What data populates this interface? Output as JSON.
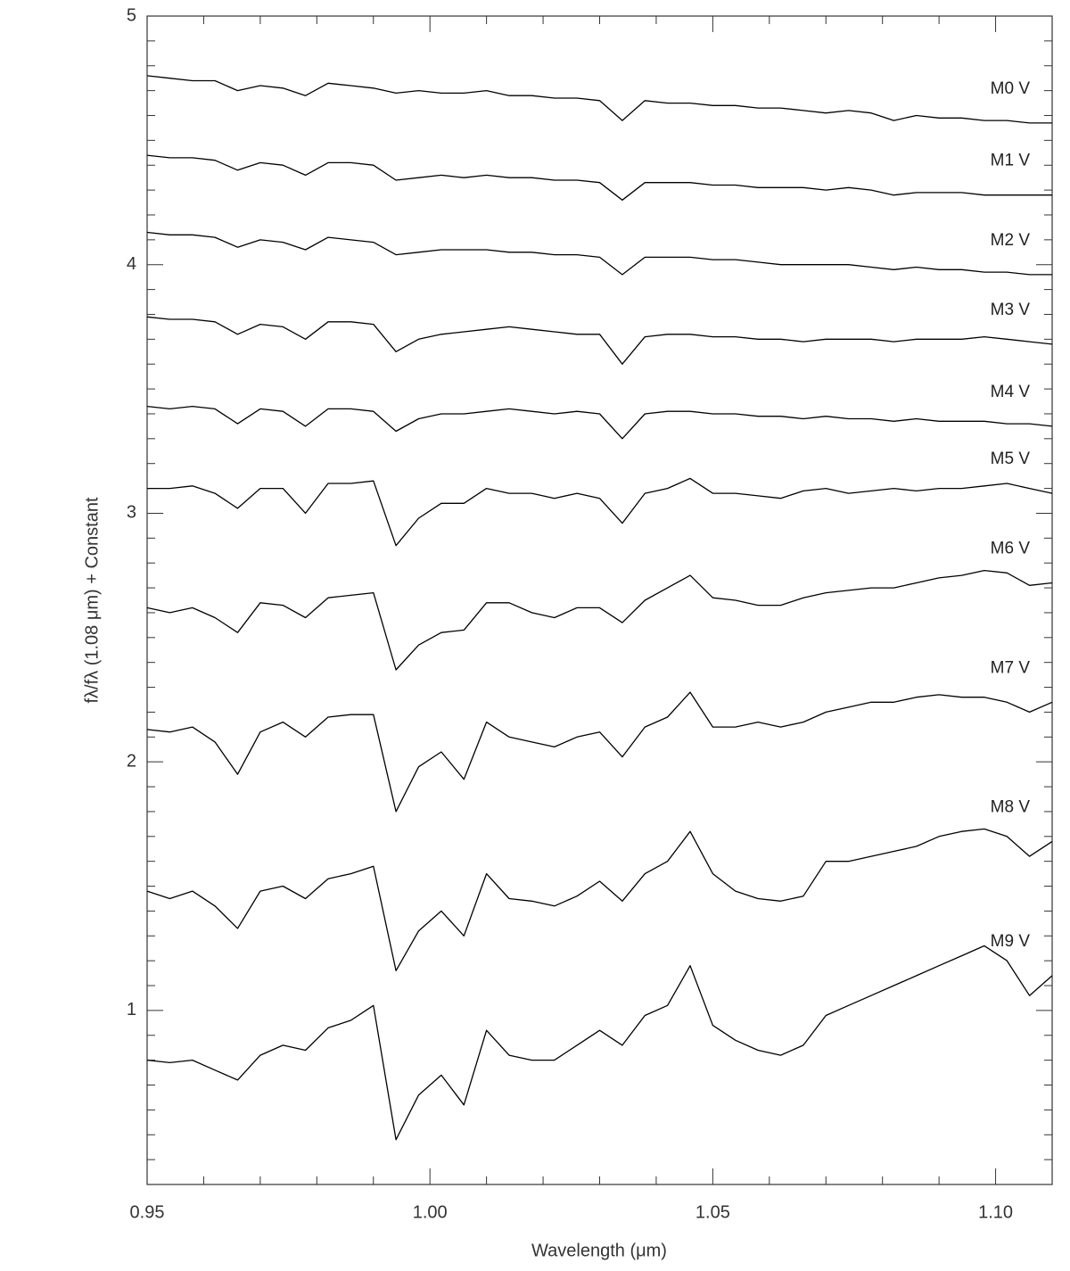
{
  "chart_data": {
    "type": "line",
    "xlabel": "Wavelength (μm)",
    "ylabel": "fλ/fλ (1.08 μm) + Constant",
    "xlim": [
      0.95,
      1.11
    ],
    "ylim": [
      0.3,
      5
    ],
    "xticks": [
      0.95,
      {
        "value": 1,
        "label": "1.00"
      },
      1.05,
      {
        "value": 1.1,
        "label": "1.10"
      }
    ],
    "yticks": [
      1,
      2,
      3,
      4,
      5
    ],
    "xminorticks": [
      0.96,
      0.97,
      0.98,
      0.99,
      1.01,
      1.02,
      1.03,
      1.04,
      1.06,
      1.07,
      1.08,
      1.09
    ],
    "yminorticks": [
      0.4,
      0.5,
      0.6,
      0.7,
      0.8,
      0.9,
      1.1,
      1.2,
      1.3,
      1.4,
      1.5,
      1.6,
      1.7,
      1.8,
      1.9,
      2.1,
      2.2,
      2.3,
      2.4,
      2.5,
      2.6,
      2.7,
      2.8,
      2.9,
      3.1,
      3.2,
      3.3,
      3.4,
      3.5,
      3.6,
      3.7,
      3.8,
      3.9,
      4.1,
      4.2,
      4.3,
      4.4,
      4.5,
      4.6,
      4.7,
      4.8,
      4.9
    ],
    "x": [
      0.95,
      0.954,
      0.958,
      0.962,
      0.966,
      0.97,
      0.974,
      0.978,
      0.982,
      0.986,
      0.99,
      0.994,
      0.998,
      1.002,
      1.006,
      1.01,
      1.014,
      1.018,
      1.022,
      1.026,
      1.03,
      1.034,
      1.038,
      1.042,
      1.046,
      1.05,
      1.054,
      1.058,
      1.062,
      1.066,
      1.07,
      1.074,
      1.078,
      1.082,
      1.086,
      1.09,
      1.094,
      1.098,
      1.102,
      1.106,
      1.11
    ],
    "series": [
      {
        "name": "M0 V",
        "color": "#000000",
        "values": [
          4.76,
          4.75,
          4.74,
          4.74,
          4.7,
          4.72,
          4.71,
          4.68,
          4.73,
          4.72,
          4.71,
          4.69,
          4.7,
          4.69,
          4.69,
          4.7,
          4.68,
          4.68,
          4.67,
          4.67,
          4.66,
          4.58,
          4.66,
          4.65,
          4.65,
          4.64,
          4.64,
          4.63,
          4.63,
          4.62,
          4.61,
          4.62,
          4.61,
          4.58,
          4.6,
          4.59,
          4.59,
          4.58,
          4.58,
          4.57,
          4.57
        ]
      },
      {
        "name": "M1 V",
        "color": "#000000",
        "values": [
          4.44,
          4.43,
          4.43,
          4.42,
          4.38,
          4.41,
          4.4,
          4.36,
          4.41,
          4.41,
          4.4,
          4.34,
          4.35,
          4.36,
          4.35,
          4.36,
          4.35,
          4.35,
          4.34,
          4.34,
          4.33,
          4.26,
          4.33,
          4.33,
          4.33,
          4.32,
          4.32,
          4.31,
          4.31,
          4.31,
          4.3,
          4.31,
          4.3,
          4.28,
          4.29,
          4.29,
          4.29,
          4.28,
          4.28,
          4.28,
          4.28
        ]
      },
      {
        "name": "M2 V",
        "color": "#000000",
        "values": [
          4.13,
          4.12,
          4.12,
          4.11,
          4.07,
          4.1,
          4.09,
          4.06,
          4.11,
          4.1,
          4.09,
          4.04,
          4.05,
          4.06,
          4.06,
          4.06,
          4.05,
          4.05,
          4.04,
          4.04,
          4.03,
          3.96,
          4.03,
          4.03,
          4.03,
          4.02,
          4.02,
          4.01,
          4.0,
          4.0,
          4.0,
          4.0,
          3.99,
          3.98,
          3.99,
          3.98,
          3.98,
          3.97,
          3.97,
          3.96,
          3.96
        ]
      },
      {
        "name": "M3 V",
        "color": "#000000",
        "values": [
          3.79,
          3.78,
          3.78,
          3.77,
          3.72,
          3.76,
          3.75,
          3.7,
          3.77,
          3.77,
          3.76,
          3.65,
          3.7,
          3.72,
          3.73,
          3.74,
          3.75,
          3.74,
          3.73,
          3.72,
          3.72,
          3.6,
          3.71,
          3.72,
          3.72,
          3.71,
          3.71,
          3.7,
          3.7,
          3.69,
          3.7,
          3.7,
          3.7,
          3.69,
          3.7,
          3.7,
          3.7,
          3.71,
          3.7,
          3.69,
          3.68
        ]
      },
      {
        "name": "M4 V",
        "color": "#000000",
        "values": [
          3.43,
          3.42,
          3.43,
          3.42,
          3.36,
          3.42,
          3.41,
          3.35,
          3.42,
          3.42,
          3.41,
          3.33,
          3.38,
          3.4,
          3.4,
          3.41,
          3.42,
          3.41,
          3.4,
          3.41,
          3.4,
          3.3,
          3.4,
          3.41,
          3.41,
          3.4,
          3.4,
          3.39,
          3.39,
          3.38,
          3.39,
          3.38,
          3.38,
          3.37,
          3.38,
          3.37,
          3.37,
          3.37,
          3.36,
          3.36,
          3.35
        ]
      },
      {
        "name": "M5 V",
        "color": "#000000",
        "values": [
          3.1,
          3.1,
          3.11,
          3.08,
          3.02,
          3.1,
          3.1,
          3.0,
          3.12,
          3.12,
          3.13,
          2.87,
          2.98,
          3.04,
          3.04,
          3.1,
          3.08,
          3.08,
          3.06,
          3.08,
          3.06,
          2.96,
          3.08,
          3.1,
          3.14,
          3.08,
          3.08,
          3.07,
          3.06,
          3.09,
          3.1,
          3.08,
          3.09,
          3.1,
          3.09,
          3.1,
          3.1,
          3.11,
          3.12,
          3.1,
          3.08
        ]
      },
      {
        "name": "M6 V",
        "color": "#000000",
        "values": [
          2.62,
          2.6,
          2.62,
          2.58,
          2.52,
          2.64,
          2.63,
          2.58,
          2.66,
          2.67,
          2.68,
          2.37,
          2.47,
          2.52,
          2.53,
          2.64,
          2.64,
          2.6,
          2.58,
          2.62,
          2.62,
          2.56,
          2.65,
          2.7,
          2.75,
          2.66,
          2.65,
          2.63,
          2.63,
          2.66,
          2.68,
          2.69,
          2.7,
          2.7,
          2.72,
          2.74,
          2.75,
          2.77,
          2.76,
          2.71,
          2.72
        ]
      },
      {
        "name": "M7 V",
        "color": "#000000",
        "values": [
          2.13,
          2.12,
          2.14,
          2.08,
          1.95,
          2.12,
          2.16,
          2.1,
          2.18,
          2.19,
          2.19,
          1.8,
          1.98,
          2.04,
          1.93,
          2.16,
          2.1,
          2.08,
          2.06,
          2.1,
          2.12,
          2.02,
          2.14,
          2.18,
          2.28,
          2.14,
          2.14,
          2.16,
          2.14,
          2.16,
          2.2,
          2.22,
          2.24,
          2.24,
          2.26,
          2.27,
          2.26,
          2.26,
          2.24,
          2.2,
          2.24
        ]
      },
      {
        "name": "M8 V",
        "color": "#000000",
        "values": [
          1.48,
          1.45,
          1.48,
          1.42,
          1.33,
          1.48,
          1.5,
          1.45,
          1.53,
          1.55,
          1.58,
          1.16,
          1.32,
          1.4,
          1.3,
          1.55,
          1.45,
          1.44,
          1.42,
          1.46,
          1.52,
          1.44,
          1.55,
          1.6,
          1.72,
          1.55,
          1.48,
          1.45,
          1.44,
          1.46,
          1.6,
          1.6,
          1.62,
          1.64,
          1.66,
          1.7,
          1.72,
          1.73,
          1.7,
          1.62,
          1.68
        ]
      },
      {
        "name": "M9 V",
        "color": "#000000",
        "values": [
          0.8,
          0.79,
          0.8,
          0.76,
          0.72,
          0.82,
          0.86,
          0.84,
          0.93,
          0.96,
          1.02,
          0.48,
          0.66,
          0.74,
          0.62,
          0.92,
          0.82,
          0.8,
          0.8,
          0.86,
          0.92,
          0.86,
          0.98,
          1.02,
          1.18,
          0.94,
          0.88,
          0.84,
          0.82,
          0.86,
          0.98,
          1.02,
          1.06,
          1.1,
          1.14,
          1.18,
          1.22,
          1.26,
          1.2,
          1.06,
          1.14
        ]
      }
    ]
  }
}
